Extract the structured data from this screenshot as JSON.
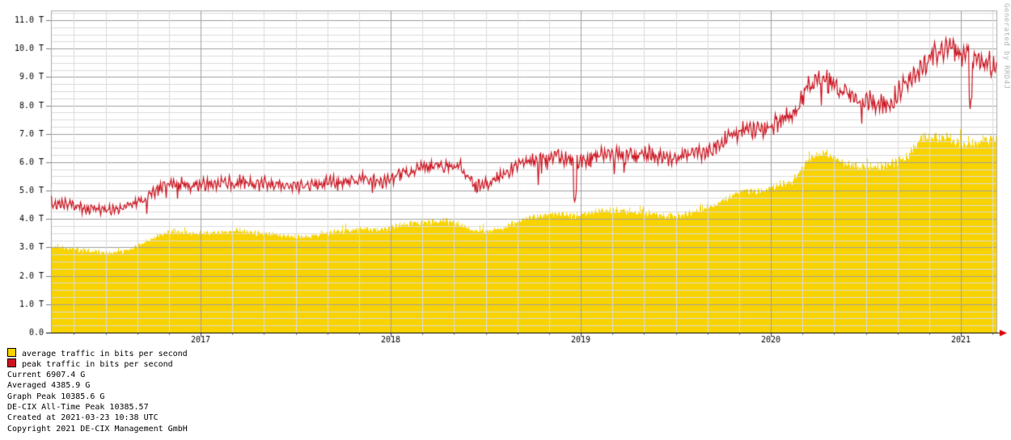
{
  "credit": "Generated by RRD4J",
  "stats": [
    "Current 6907.4 G",
    "Averaged 4385.9 G",
    "Graph Peak 10385.6 G",
    "DE-CIX All-Time Peak 10385.57",
    "Created at 2021-03-23 10:38 UTC",
    "Copyright 2021 DE-CIX Management GmbH"
  ],
  "colors": {
    "average": "#F8D300",
    "peak": "#CC1420",
    "grid_minor": "#DCDCDC",
    "grid_major": "#A0A0A0",
    "tick": "#808080",
    "axis": "#000000",
    "arrow": "#DD0000",
    "credit_text": "#B4B4B4",
    "text": "#000000"
  },
  "chart_data": {
    "type": "area",
    "title": "",
    "xlabel": "",
    "ylabel": "",
    "y_unit": "T (terabits per second)",
    "ylim": [
      0,
      11.34
    ],
    "y_ticks": [
      "0.0",
      "1.0 T",
      "2.0 T",
      "3.0 T",
      "4.0 T",
      "5.0 T",
      "6.0 T",
      "7.0 T",
      "8.0 T",
      "9.0 T",
      "10.0 T",
      "11.0 T"
    ],
    "x_range_years": [
      2016.213,
      2021.187
    ],
    "x_tick_years": [
      2017,
      2018,
      2019,
      2020,
      2021
    ],
    "x_tick_labels": [
      "2017",
      "2018",
      "2019",
      "2020",
      "2021"
    ],
    "grid": {
      "y_minor_step": 0.25,
      "y_major_step": 1.0,
      "x_minor_step_years": 0.1666667,
      "x_major_step_years": 1
    },
    "legend_position": "bottom-left",
    "series": [
      {
        "name": "average traffic in bits per second",
        "type": "area",
        "color": "#F8D300",
        "x_start_year": 2016.2,
        "x_step_years": 0.0833333,
        "values_tbps": [
          3.05,
          3.0,
          2.9,
          2.85,
          2.8,
          2.9,
          3.15,
          3.45,
          3.55,
          3.5,
          3.5,
          3.55,
          3.6,
          3.5,
          3.45,
          3.4,
          3.35,
          3.45,
          3.55,
          3.6,
          3.65,
          3.6,
          3.75,
          3.85,
          3.9,
          3.95,
          3.8,
          3.55,
          3.6,
          3.75,
          4.0,
          4.1,
          4.2,
          4.1,
          4.2,
          4.3,
          4.3,
          4.25,
          4.2,
          4.1,
          4.15,
          4.3,
          4.5,
          4.8,
          5.0,
          4.95,
          5.2,
          5.35,
          6.2,
          6.35,
          6.0,
          5.85,
          5.8,
          5.9,
          6.1,
          6.8,
          6.9,
          6.8,
          6.6,
          6.75,
          6.9
        ],
        "noise": {
          "random": 0.02,
          "weekly": 0.012,
          "spike_chance": 0.015,
          "spike_gain": 1.045
        }
      },
      {
        "name": "peak traffic in bits per second",
        "type": "line",
        "color": "#CC1420",
        "x_start_year": 2016.2,
        "x_step_years": 0.0833333,
        "values_tbps": [
          4.6,
          4.55,
          4.4,
          4.35,
          4.3,
          4.45,
          4.7,
          5.1,
          5.25,
          5.2,
          5.2,
          5.3,
          5.3,
          5.2,
          5.25,
          5.2,
          5.1,
          5.2,
          5.3,
          5.3,
          5.4,
          5.3,
          5.5,
          5.7,
          5.85,
          5.9,
          5.8,
          5.15,
          5.3,
          5.7,
          5.95,
          6.1,
          6.2,
          6.05,
          6.1,
          6.3,
          6.25,
          6.2,
          6.3,
          6.1,
          6.2,
          6.3,
          6.5,
          6.9,
          7.2,
          7.1,
          7.4,
          7.7,
          8.7,
          8.9,
          8.6,
          8.3,
          8.1,
          8.0,
          8.7,
          9.3,
          9.9,
          10.0,
          9.8,
          9.6,
          9.2
        ],
        "noise": {
          "random": 0.035,
          "weekly": 0.018
        },
        "dip_events": [
          {
            "year": 2018.97,
            "factor": 0.8
          },
          {
            "year": 2021.05,
            "factor": 0.84
          }
        ]
      }
    ],
    "annotations": {
      "current_g": 6907.4,
      "averaged_g": 4385.9,
      "graph_peak_g": 10385.6,
      "all_time_peak_g": 10385.57
    }
  }
}
